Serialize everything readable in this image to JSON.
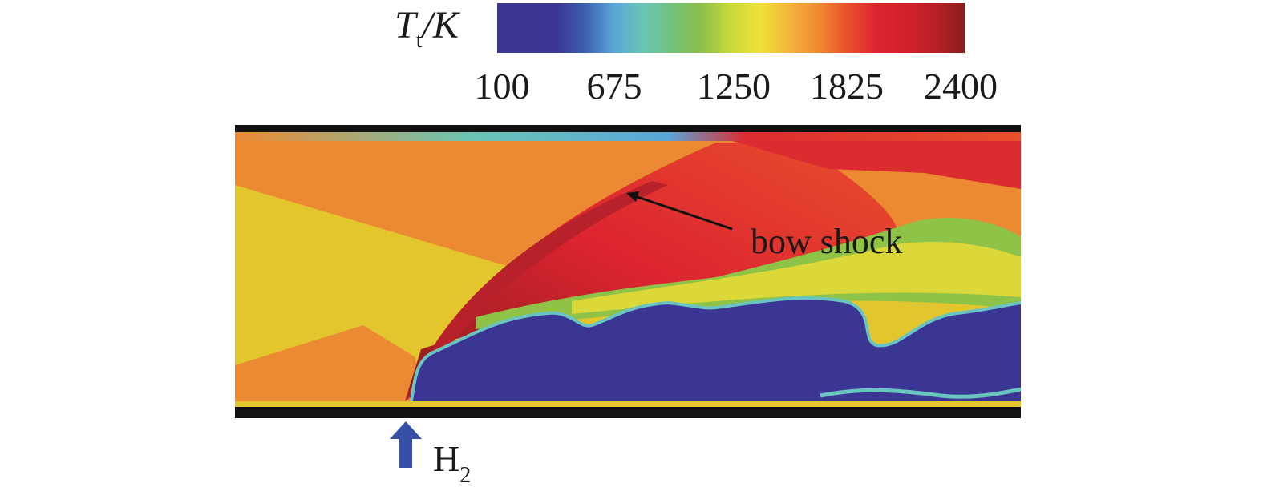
{
  "colorbar": {
    "label_main": "T",
    "label_sub": "t",
    "label_unit": "/K",
    "ticks": [
      "100",
      "675",
      "1250",
      "1825",
      "2400"
    ],
    "colors": [
      "#3b3594",
      "#3b3594",
      "#3b3594",
      "#3d5fb0",
      "#5aa6d8",
      "#6cc5b5",
      "#72c27a",
      "#8dc04a",
      "#c9d93a",
      "#f0e23a",
      "#f4b43c",
      "#f08a30",
      "#e8502c",
      "#dd2430",
      "#d3202c",
      "#b82025",
      "#8a1d1e"
    ]
  },
  "annotation": {
    "label": "bow shock"
  },
  "injection": {
    "label_main": "H",
    "label_sub": "2",
    "arrow_color": "#3550a6"
  },
  "field_colors": {
    "wall": "#111111",
    "core": "#3b3594",
    "yellow": "#e3c62e",
    "orange": "#ec8a33",
    "red": "#dc2c30",
    "dark_red": "#b8212a",
    "green": "#8fc347",
    "cyan": "#6ac4c0"
  }
}
